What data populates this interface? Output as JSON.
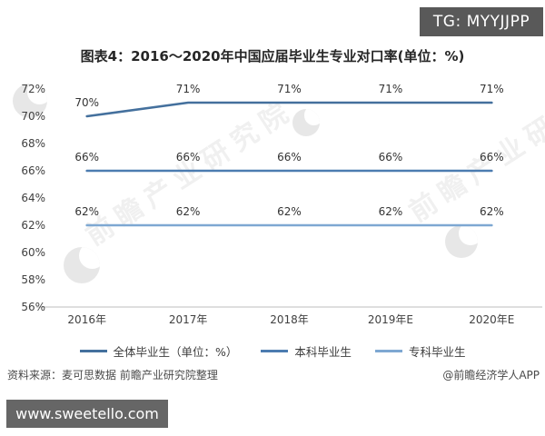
{
  "badge": {
    "text": "TG: MYYJJPP"
  },
  "title": "图表4：2016～2020年中国应届毕业生专业对口率(单位：%)",
  "watermark": {
    "text": "前瞻产业研究院"
  },
  "source": {
    "left": "资料来源：麦可思数据 前瞻产业研究院整理",
    "right": "@前瞻经济学人APP"
  },
  "footer": {
    "url": "www.sweetello.com"
  },
  "colors": {
    "badge_bg": "#595959",
    "footer_bg": "#666666",
    "axis_line": "#d4d4d4"
  },
  "chart_data": {
    "type": "line",
    "title": "图表4：2016～2020年中国应届毕业生专业对口率(单位：%)",
    "categories": [
      "2016年",
      "2017年",
      "2018年",
      "2019年E",
      "2020年E"
    ],
    "series": [
      {
        "name": "全体毕业生（单位：%）",
        "color": "#44709d",
        "values": [
          70,
          71,
          71,
          71,
          71
        ]
      },
      {
        "name": "本科毕业生",
        "color": "#4c7cb0",
        "values": [
          66,
          66,
          66,
          66,
          66
        ]
      },
      {
        "name": "专科毕业生",
        "color": "#7ea8d2",
        "values": [
          62,
          62,
          62,
          62,
          62
        ]
      }
    ],
    "xlabel": "",
    "ylabel": "",
    "ylim": [
      56,
      72
    ],
    "ytick_step": 2,
    "yticks": [
      "56%",
      "58%",
      "60%",
      "62%",
      "64%",
      "66%",
      "68%",
      "70%",
      "72%"
    ],
    "grid": false,
    "data_labels": true,
    "legend_position": "bottom"
  }
}
